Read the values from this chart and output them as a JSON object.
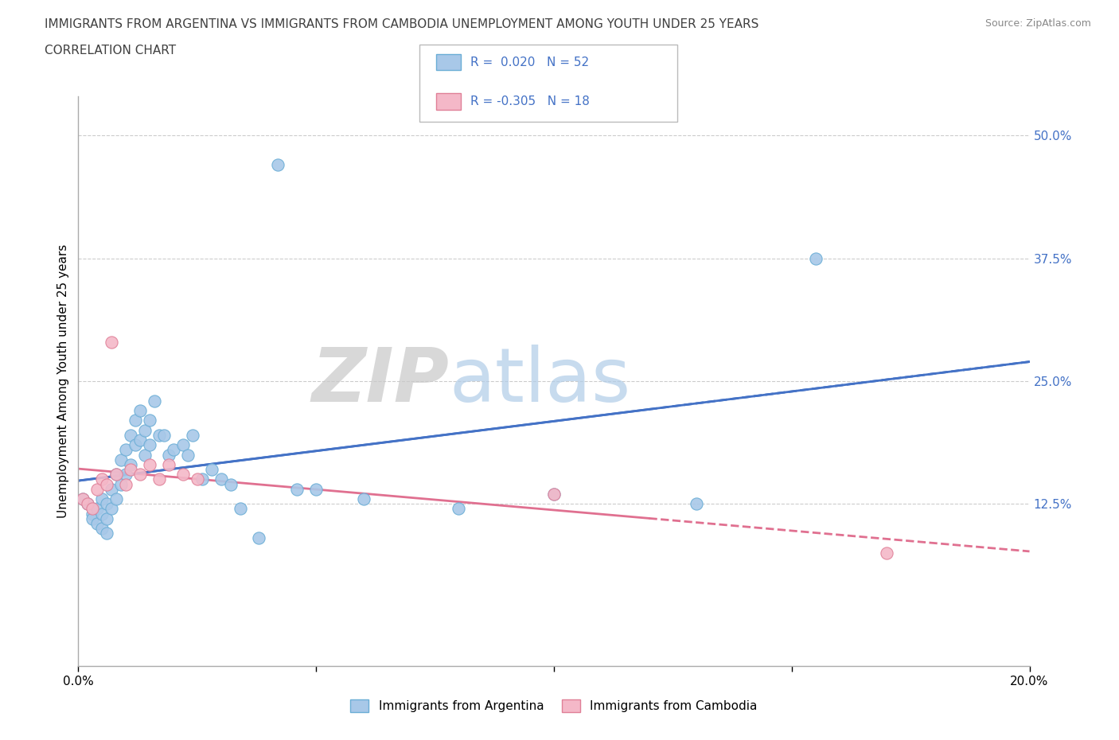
{
  "title_line1": "IMMIGRANTS FROM ARGENTINA VS IMMIGRANTS FROM CAMBODIA UNEMPLOYMENT AMONG YOUTH UNDER 25 YEARS",
  "title_line2": "CORRELATION CHART",
  "source": "Source: ZipAtlas.com",
  "ylabel": "Unemployment Among Youth under 25 years",
  "xlim": [
    0.0,
    0.2
  ],
  "ylim": [
    -0.04,
    0.54
  ],
  "watermark_zip": "ZIP",
  "watermark_atlas": "atlas",
  "argentina_color": "#a8c8e8",
  "argentina_edge_color": "#6baed6",
  "cambodia_color": "#f4b8c8",
  "cambodia_edge_color": "#e08098",
  "argentina_line_color": "#4472c6",
  "cambodia_line_color": "#e07090",
  "grid_color": "#cccccc",
  "title_color": "#404040",
  "source_color": "#888888",
  "yticklabel_color": "#4472c6",
  "legend_r1_text": "R =  0.020   N = 52",
  "legend_r2_text": "R = -0.305   N = 18",
  "bottom_legend_argentina": "Immigrants from Argentina",
  "bottom_legend_cambodia": "Immigrants from Cambodia",
  "argentina_x": [
    0.001,
    0.002,
    0.003,
    0.003,
    0.004,
    0.004,
    0.005,
    0.005,
    0.005,
    0.006,
    0.006,
    0.006,
    0.007,
    0.007,
    0.008,
    0.008,
    0.009,
    0.009,
    0.01,
    0.01,
    0.011,
    0.011,
    0.012,
    0.012,
    0.013,
    0.013,
    0.014,
    0.014,
    0.015,
    0.015,
    0.016,
    0.017,
    0.018,
    0.019,
    0.02,
    0.022,
    0.023,
    0.024,
    0.026,
    0.028,
    0.03,
    0.032,
    0.034,
    0.038,
    0.042,
    0.046,
    0.05,
    0.06,
    0.08,
    0.1,
    0.13,
    0.155
  ],
  "argentina_y": [
    0.13,
    0.125,
    0.115,
    0.11,
    0.12,
    0.105,
    0.13,
    0.115,
    0.1,
    0.125,
    0.11,
    0.095,
    0.14,
    0.12,
    0.155,
    0.13,
    0.17,
    0.145,
    0.18,
    0.155,
    0.195,
    0.165,
    0.21,
    0.185,
    0.22,
    0.19,
    0.2,
    0.175,
    0.21,
    0.185,
    0.23,
    0.195,
    0.195,
    0.175,
    0.18,
    0.185,
    0.175,
    0.195,
    0.15,
    0.16,
    0.15,
    0.145,
    0.12,
    0.09,
    0.47,
    0.14,
    0.14,
    0.13,
    0.12,
    0.135,
    0.125,
    0.375
  ],
  "cambodia_x": [
    0.001,
    0.002,
    0.003,
    0.004,
    0.005,
    0.006,
    0.007,
    0.008,
    0.01,
    0.011,
    0.013,
    0.015,
    0.017,
    0.019,
    0.022,
    0.025,
    0.1,
    0.17
  ],
  "cambodia_y": [
    0.13,
    0.125,
    0.12,
    0.14,
    0.15,
    0.145,
    0.29,
    0.155,
    0.145,
    0.16,
    0.155,
    0.165,
    0.15,
    0.165,
    0.155,
    0.15,
    0.135,
    0.075
  ]
}
